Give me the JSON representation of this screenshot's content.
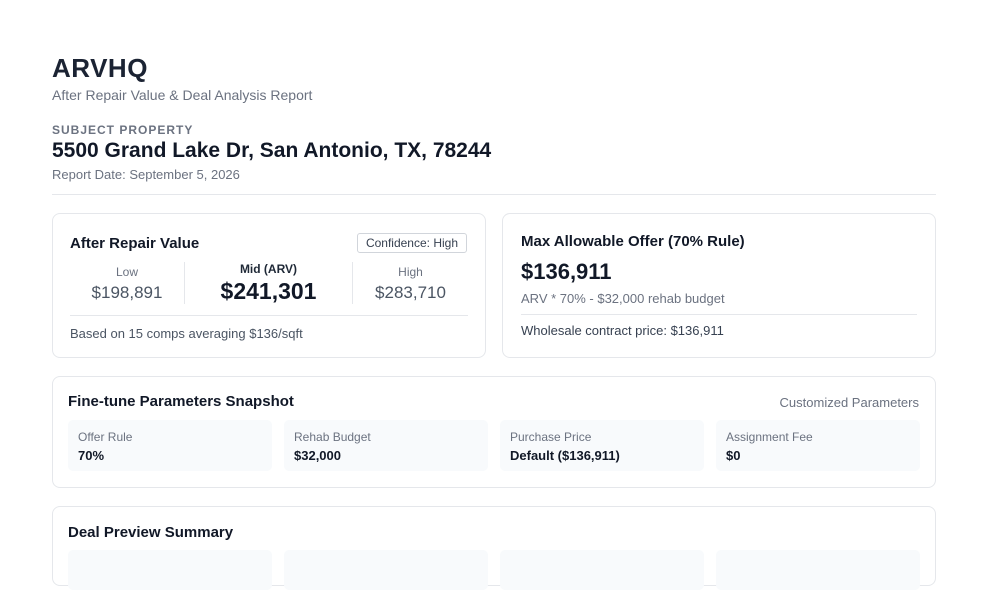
{
  "header": {
    "brand": "ARVHQ",
    "tagline": "After Repair Value & Deal Analysis Report"
  },
  "subject": {
    "label": "SUBJECT PROPERTY",
    "address": "5500 Grand Lake Dr, San Antonio, TX, 78244",
    "report_date": "Report Date: September 5, 2026"
  },
  "arv": {
    "title": "After Repair Value",
    "confidence": "Confidence: High",
    "low_label": "Low",
    "low_value": "$198,891",
    "mid_label": "Mid (ARV)",
    "mid_value": "$241,301",
    "high_label": "High",
    "high_value": "$283,710",
    "note": "Based on 15 comps averaging $136/sqft"
  },
  "mao": {
    "title": "Max Allowable Offer (70% Rule)",
    "value": "$136,911",
    "formula": "ARV * 70% - $32,000 rehab budget",
    "wholesale": "Wholesale contract price: $136,911"
  },
  "params": {
    "title": "Fine-tune Parameters Snapshot",
    "right_label": "Customized Parameters",
    "items": [
      {
        "label": "Offer Rule",
        "value": "70%"
      },
      {
        "label": "Rehab Budget",
        "value": "$32,000"
      },
      {
        "label": "Purchase Price",
        "value": "Default ($136,911)"
      },
      {
        "label": "Assignment Fee",
        "value": "$0"
      }
    ]
  },
  "deal": {
    "title": "Deal Preview Summary"
  }
}
